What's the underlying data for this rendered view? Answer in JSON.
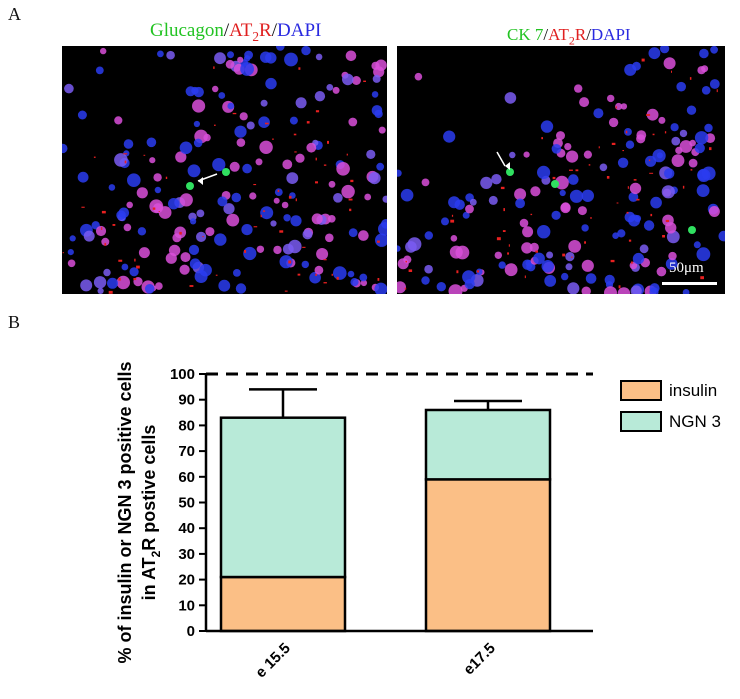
{
  "figure": {
    "panel_a_letter": "A",
    "panel_b_letter": "B",
    "micrograph_left": {
      "title_parts": [
        {
          "text": "Glucagon",
          "color": "#22c322"
        },
        {
          "text": "/",
          "color": "#111111"
        },
        {
          "text": "AT",
          "color": "#e02020"
        },
        {
          "text": "2",
          "color": "#e02020"
        },
        {
          "text": "R",
          "color": "#e02020"
        },
        {
          "text": "/",
          "color": "#111111"
        },
        {
          "text": "DAPI",
          "color": "#2a2ae0"
        }
      ]
    },
    "micrograph_right": {
      "title_parts": [
        {
          "text": "CK 7",
          "color": "#22c322"
        },
        {
          "text": "/",
          "color": "#111111"
        },
        {
          "text": "AT",
          "color": "#e02020"
        },
        {
          "text": "2",
          "color": "#e02020"
        },
        {
          "text": "R",
          "color": "#e02020"
        },
        {
          "text": "/",
          "color": "#111111"
        },
        {
          "text": "DAPI",
          "color": "#2a2ae0"
        }
      ],
      "scale_label": "50μm"
    }
  },
  "chart_data": {
    "type": "bar",
    "stacked": true,
    "categories": [
      "e 15.5",
      "e17.5"
    ],
    "series": [
      {
        "name": "insulin",
        "values": [
          21,
          59
        ],
        "errors": [
          2.5,
          2
        ],
        "color": "#fbbf86"
      },
      {
        "name": "NGN 3",
        "values": [
          62,
          27
        ],
        "errors": [
          11,
          3.5
        ],
        "color": "#b8ead8"
      }
    ],
    "ylabel_line1": "% of insulin or NGN 3 positive cells",
    "ylabel_line2_parts": [
      "in AT",
      "2",
      "R postive cells"
    ],
    "ylim": [
      0,
      100
    ],
    "yticks": [
      0,
      10,
      20,
      30,
      40,
      50,
      60,
      70,
      80,
      90,
      100
    ],
    "reference_line": 100,
    "legend_position": "right",
    "grid": false
  }
}
